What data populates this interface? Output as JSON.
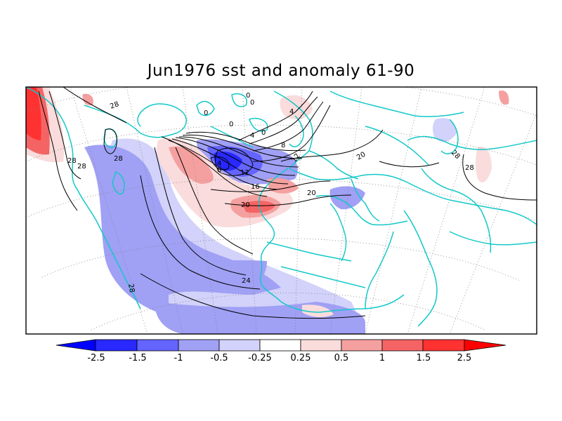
{
  "title": "Jun1976 sst and anomaly 61-90",
  "colors": {
    "neg_2_5": "#2828ff",
    "neg_1_5": "#6464ff",
    "neg_1": "#a0a0f5",
    "neg_0_5": "#d2d2fa",
    "neutral": "#ffffff",
    "pos_0_25": "#fadcdc",
    "pos_0_5": "#f5a0a0",
    "pos_1": "#f56464",
    "pos_1_5": "#ff3232",
    "pos_2_5": "#ff0000",
    "coast": "#14c8c8",
    "contour": "#000000"
  },
  "colorbar": {
    "ticks": [
      "-2.5",
      "-1.5",
      "-1",
      "-0.5",
      "-0.25",
      "0.25",
      "0.5",
      "1",
      "1.5",
      "2.5"
    ]
  },
  "contour_labels": [
    "28",
    "28",
    "28",
    "28",
    "28",
    "28",
    "28",
    "0",
    "0",
    "0",
    "0",
    "0",
    "4",
    "4",
    "4",
    "8",
    "8",
    "12",
    "12",
    "16",
    "20",
    "20",
    "20",
    "24"
  ]
}
